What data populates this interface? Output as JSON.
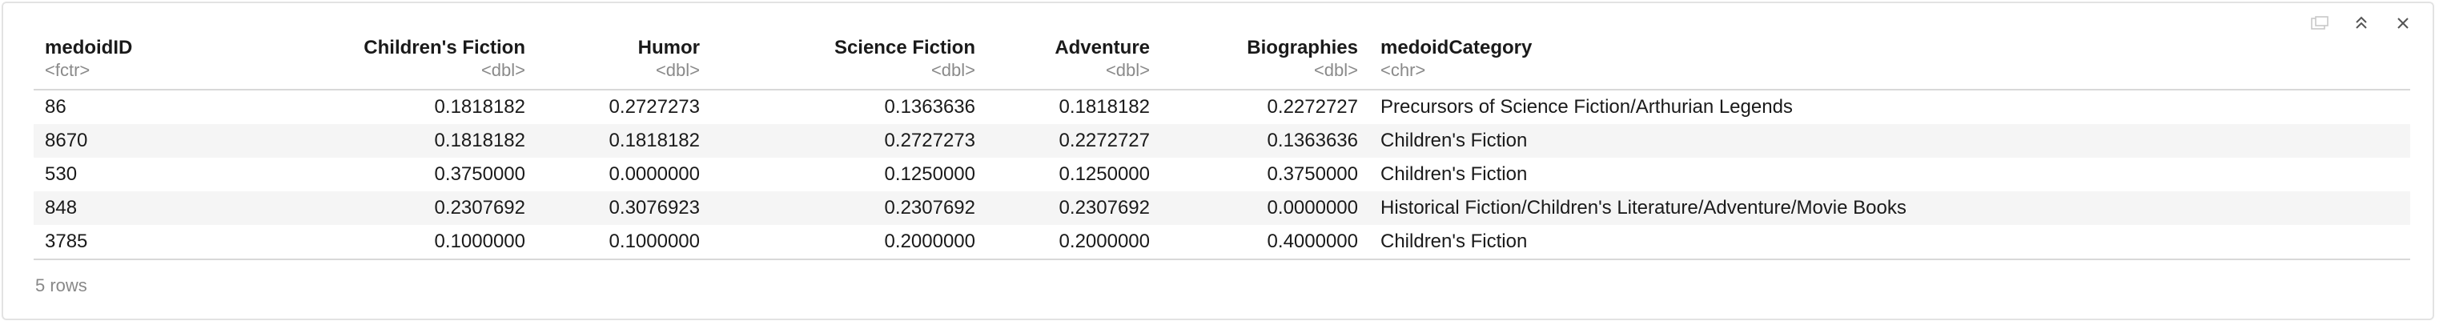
{
  "columns": [
    {
      "name": "medoidID",
      "type": "<fctr>",
      "align": "left"
    },
    {
      "name": "Children's Fiction",
      "type": "<dbl>",
      "align": "right"
    },
    {
      "name": "Humor",
      "type": "<dbl>",
      "align": "right"
    },
    {
      "name": "Science Fiction",
      "type": "<dbl>",
      "align": "right"
    },
    {
      "name": "Adventure",
      "type": "<dbl>",
      "align": "right"
    },
    {
      "name": "Biographies",
      "type": "<dbl>",
      "align": "right"
    },
    {
      "name": "medoidCategory",
      "type": "<chr>",
      "align": "left"
    }
  ],
  "rows": [
    [
      "86",
      "0.1818182",
      "0.2727273",
      "0.1363636",
      "0.1818182",
      "0.2272727",
      "Precursors of Science Fiction/Arthurian Legends"
    ],
    [
      "8670",
      "0.1818182",
      "0.1818182",
      "0.2727273",
      "0.2272727",
      "0.1363636",
      "Children's Fiction"
    ],
    [
      "530",
      "0.3750000",
      "0.0000000",
      "0.1250000",
      "0.1250000",
      "0.3750000",
      "Children's Fiction"
    ],
    [
      "848",
      "0.2307692",
      "0.3076923",
      "0.2307692",
      "0.2307692",
      "0.0000000",
      "Historical Fiction/Children's Literature/Adventure/Movie Books"
    ],
    [
      "3785",
      "0.1000000",
      "0.1000000",
      "0.2000000",
      "0.2000000",
      "0.4000000",
      "Children's Fiction"
    ]
  ],
  "footer": {
    "row_count": "5 rows"
  },
  "toolbar": {
    "icons": [
      "popout-icon",
      "collapse-icon",
      "close-icon"
    ]
  }
}
